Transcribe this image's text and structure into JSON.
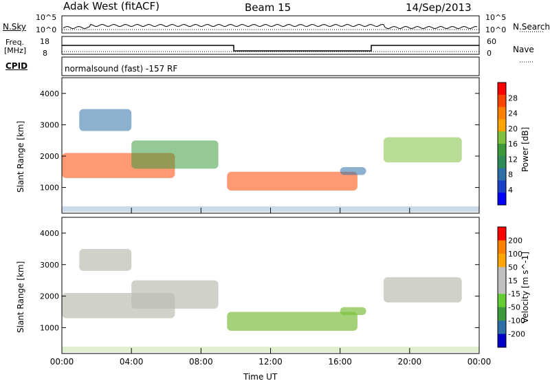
{
  "header": {
    "radar_title": "Adak West (fitACF)",
    "beam": "Beam 15",
    "date": "14/Sep/2013"
  },
  "strip_panels": {
    "nsky_label": "N.Sky",
    "nsky_ticks": [
      "10^5",
      "10^0"
    ],
    "nsearch_label": "N.Search",
    "nsearch_ticks": [
      "10^5",
      "10^0"
    ],
    "freq_label_line1": "Freq.",
    "freq_label_line2": "[MHz]",
    "freq_ticks": [
      "18",
      "8"
    ],
    "nave_label": "Nave",
    "nave_ticks": [
      "60",
      "0"
    ],
    "cpid_label": "CPID",
    "cpid_text": "normalsound (fast) -157 RF"
  },
  "chart_data": [
    {
      "type": "heatmap",
      "name": "power",
      "xlabel": "Time UT",
      "ylabel": "Slant Range [km]",
      "xlim": [
        0,
        24
      ],
      "ylim": [
        180,
        4500
      ],
      "xticks": [
        0,
        4,
        8,
        12,
        16,
        20,
        24
      ],
      "xtick_labels": [
        "00:00",
        "04:00",
        "08:00",
        "12:00",
        "16:00",
        "20:00",
        "00:00"
      ],
      "yticks": [
        1000,
        2000,
        3000,
        4000
      ],
      "ytick_labels": [
        "1000",
        "2000",
        "3000",
        "4000"
      ],
      "colorbar_label": "Power [dB]",
      "colorbar_ticks": [
        "28",
        "24",
        "20",
        "16",
        "12",
        "8",
        "4"
      ],
      "colorbar_colors": [
        "#0000ff",
        "#1a40c8",
        "#2e6fa8",
        "#2e8b57",
        "#3c9a3c",
        "#7fbf3f",
        "#ffa500",
        "#ff7f00",
        "#ff4500",
        "#ff0000"
      ],
      "echo_bands": [
        {
          "t0": 0.0,
          "t1": 6.5,
          "r0": 1300,
          "r1": 2100,
          "level": 26
        },
        {
          "t0": 4.0,
          "t1": 9.0,
          "r0": 1600,
          "r1": 2500,
          "level": 14
        },
        {
          "t0": 9.5,
          "t1": 17.0,
          "r0": 900,
          "r1": 1500,
          "level": 26
        },
        {
          "t0": 16.0,
          "t1": 17.5,
          "r0": 1400,
          "r1": 1650,
          "level": 8
        },
        {
          "t0": 18.5,
          "t1": 23.0,
          "r0": 1800,
          "r1": 2600,
          "level": 16
        },
        {
          "t0": 1.0,
          "t1": 4.0,
          "r0": 2800,
          "r1": 3500,
          "level": 6
        }
      ]
    },
    {
      "type": "heatmap",
      "name": "velocity",
      "xlabel": "Time UT",
      "ylabel": "Slant Range [km]",
      "xlim": [
        0,
        24
      ],
      "ylim": [
        180,
        4500
      ],
      "xticks": [
        0,
        4,
        8,
        12,
        16,
        20,
        24
      ],
      "xtick_labels": [
        "00:00",
        "04:00",
        "08:00",
        "12:00",
        "16:00",
        "20:00",
        "00:00"
      ],
      "yticks": [
        1000,
        2000,
        3000,
        4000
      ],
      "ytick_labels": [
        "1000",
        "2000",
        "3000",
        "4000"
      ],
      "colorbar_label": "Velocity [m s^-1]",
      "colorbar_ticks": [
        "200",
        "100",
        "50",
        "15",
        "-15",
        "-50",
        "-100",
        "-200"
      ],
      "colorbar_colors": [
        "#0000c8",
        "#2e6fa8",
        "#3c9a3c",
        "#66cc33",
        "#c0c0c0",
        "#c0c0c0",
        "#ffa500",
        "#ff7f00",
        "#ff0000"
      ]
    }
  ]
}
